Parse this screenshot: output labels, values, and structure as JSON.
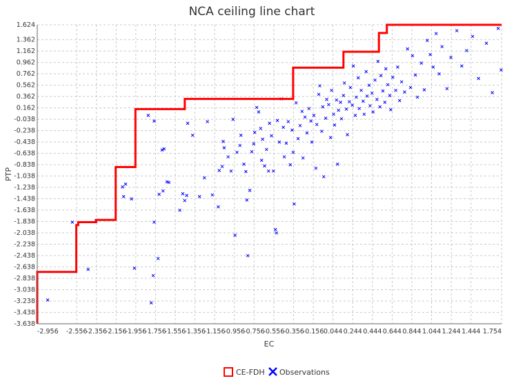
{
  "chart_data": {
    "type": "scatter",
    "title": "NCA ceiling line chart",
    "xlabel": "EC",
    "ylabel": "PTP",
    "xlim": [
      -2.956,
      1.754
    ],
    "ylim": [
      -3.638,
      1.624
    ],
    "x_ticks": [
      "-2.956",
      "-2.556",
      "-2.356",
      "-2.156",
      "-1.956",
      "-1.756",
      "-1.556",
      "-1.356",
      "-1.156",
      "-0.956",
      "-0.756",
      "-0.556",
      "-0.356",
      "-0.156",
      "0.044",
      "0.244",
      "0.444",
      "0.644",
      "0.844",
      "1.044",
      "1.244",
      "1.444",
      "1.754"
    ],
    "y_ticks": [
      "1.624",
      "1.362",
      "1.162",
      "0.962",
      "0.762",
      "0.562",
      "0.362",
      "0.162",
      "-0.038",
      "-0.238",
      "-0.438",
      "-0.638",
      "-0.838",
      "-1.038",
      "-1.238",
      "-1.438",
      "-1.638",
      "-1.838",
      "-2.038",
      "-2.238",
      "-2.438",
      "-2.638",
      "-2.838",
      "-3.038",
      "-3.238",
      "-3.438",
      "-3.638"
    ],
    "grid": true,
    "legend_position": "bottom",
    "colors": {
      "ceiling": "#ff0000",
      "observations": "#0000ff",
      "grid": "#c8c8c8"
    },
    "series": [
      {
        "name": "CE-FDH",
        "type": "step-line",
        "points": [
          [
            -2.956,
            -3.638
          ],
          [
            -2.956,
            -2.726
          ],
          [
            -2.56,
            -2.726
          ],
          [
            -2.56,
            -1.9
          ],
          [
            -2.54,
            -1.9
          ],
          [
            -2.54,
            -1.85
          ],
          [
            -2.36,
            -1.85
          ],
          [
            -2.36,
            -1.81
          ],
          [
            -2.16,
            -1.81
          ],
          [
            -2.16,
            -0.88
          ],
          [
            -1.96,
            -0.88
          ],
          [
            -1.96,
            0.14
          ],
          [
            -1.46,
            0.14
          ],
          [
            -1.46,
            0.32
          ],
          [
            -0.36,
            0.32
          ],
          [
            -0.36,
            0.87
          ],
          [
            0.15,
            0.87
          ],
          [
            0.15,
            1.15
          ],
          [
            0.51,
            1.15
          ],
          [
            0.51,
            1.48
          ],
          [
            0.59,
            1.48
          ],
          [
            0.59,
            1.624
          ],
          [
            1.754,
            1.624
          ]
        ]
      },
      {
        "name": "Observations",
        "type": "scatter",
        "points": [
          [
            -2.85,
            -3.22
          ],
          [
            -2.6,
            -1.85
          ],
          [
            -2.36,
            -1.83
          ],
          [
            -2.44,
            -2.68
          ],
          [
            -2.09,
            -1.23
          ],
          [
            -2.06,
            -1.18
          ],
          [
            -2.08,
            -1.4
          ],
          [
            -2.0,
            -1.44
          ],
          [
            -1.97,
            -2.66
          ],
          [
            -1.83,
            0.03
          ],
          [
            -1.77,
            -0.07
          ],
          [
            -1.72,
            -1.36
          ],
          [
            -1.68,
            -1.3
          ],
          [
            -1.64,
            -1.14
          ],
          [
            -1.62,
            -1.15
          ],
          [
            -1.69,
            -0.58
          ],
          [
            -1.67,
            -0.56
          ],
          [
            -1.77,
            -1.85
          ],
          [
            -1.78,
            -2.79
          ],
          [
            -1.8,
            -3.27
          ],
          [
            -1.73,
            -2.49
          ],
          [
            -1.51,
            -1.64
          ],
          [
            -1.48,
            -1.35
          ],
          [
            -1.46,
            -1.47
          ],
          [
            -1.44,
            -1.38
          ],
          [
            -1.43,
            -0.11
          ],
          [
            -1.38,
            -0.32
          ],
          [
            -1.31,
            -1.4
          ],
          [
            -1.26,
            -1.07
          ],
          [
            -1.23,
            -0.08
          ],
          [
            -1.18,
            -1.37
          ],
          [
            -1.12,
            -1.58
          ],
          [
            -1.11,
            -0.94
          ],
          [
            -1.08,
            -0.87
          ],
          [
            -1.07,
            -0.43
          ],
          [
            -1.06,
            -0.54
          ],
          [
            -1.02,
            -0.7
          ],
          [
            -0.99,
            -0.95
          ],
          [
            -0.97,
            -0.04
          ],
          [
            -0.95,
            -2.08
          ],
          [
            -0.93,
            -0.62
          ],
          [
            -0.9,
            -0.5
          ],
          [
            -0.89,
            -0.32
          ],
          [
            -0.86,
            -0.83
          ],
          [
            -0.84,
            -0.96
          ],
          [
            -0.83,
            -1.46
          ],
          [
            -0.82,
            -2.44
          ],
          [
            -0.8,
            -1.29
          ],
          [
            -0.78,
            -0.61
          ],
          [
            -0.76,
            -0.47
          ],
          [
            -0.75,
            -0.27
          ],
          [
            -0.73,
            0.17
          ],
          [
            -0.71,
            0.09
          ],
          [
            -0.69,
            -0.2
          ],
          [
            -0.68,
            -0.76
          ],
          [
            -0.67,
            -0.39
          ],
          [
            -0.65,
            -0.86
          ],
          [
            -0.63,
            -0.57
          ],
          [
            -0.61,
            -0.95
          ],
          [
            -0.6,
            -0.11
          ],
          [
            -0.58,
            -0.33
          ],
          [
            -0.56,
            -0.95
          ],
          [
            -0.54,
            -1.98
          ],
          [
            -0.53,
            -2.04
          ],
          [
            -0.52,
            -0.06
          ],
          [
            -0.5,
            -0.44
          ],
          [
            -0.48,
            0.32
          ],
          [
            -0.46,
            -0.18
          ],
          [
            -0.45,
            -0.7
          ],
          [
            -0.43,
            -0.46
          ],
          [
            -0.41,
            -0.08
          ],
          [
            -0.39,
            -0.84
          ],
          [
            -0.37,
            -0.23
          ],
          [
            -0.36,
            -0.62
          ],
          [
            -0.35,
            -1.53
          ],
          [
            -0.33,
            0.25
          ],
          [
            -0.31,
            -0.38
          ],
          [
            -0.29,
            -0.15
          ],
          [
            -0.27,
            0.1
          ],
          [
            -0.26,
            -0.72
          ],
          [
            -0.24,
            0.0
          ],
          [
            -0.22,
            -0.28
          ],
          [
            -0.2,
            0.15
          ],
          [
            -0.18,
            -0.07
          ],
          [
            -0.17,
            -0.44
          ],
          [
            -0.15,
            0.03
          ],
          [
            -0.13,
            -0.9
          ],
          [
            -0.12,
            -0.13
          ],
          [
            -0.1,
            0.4
          ],
          [
            -0.09,
            0.55
          ],
          [
            -0.07,
            -0.25
          ],
          [
            -0.06,
            0.18
          ],
          [
            -0.05,
            -1.05
          ],
          [
            -0.03,
            -0.02
          ],
          [
            -0.02,
            0.31
          ],
          [
            0.0,
            0.22
          ],
          [
            0.02,
            -0.36
          ],
          [
            0.03,
            0.47
          ],
          [
            0.05,
            0.05
          ],
          [
            0.06,
            -0.14
          ],
          [
            0.08,
            0.3
          ],
          [
            0.09,
            -0.83
          ],
          [
            0.1,
            0.12
          ],
          [
            0.12,
            0.26
          ],
          [
            0.13,
            -0.03
          ],
          [
            0.15,
            0.38
          ],
          [
            0.16,
            0.6
          ],
          [
            0.18,
            0.14
          ],
          [
            0.19,
            -0.31
          ],
          [
            0.21,
            0.27
          ],
          [
            0.22,
            0.52
          ],
          [
            0.24,
            0.21
          ],
          [
            0.25,
            0.9
          ],
          [
            0.27,
            0.03
          ],
          [
            0.28,
            0.35
          ],
          [
            0.3,
            0.69
          ],
          [
            0.31,
            0.15
          ],
          [
            0.33,
            0.47
          ],
          [
            0.35,
            0.28
          ],
          [
            0.36,
            0.05
          ],
          [
            0.38,
            0.8
          ],
          [
            0.39,
            0.37
          ],
          [
            0.41,
            0.56
          ],
          [
            0.42,
            0.2
          ],
          [
            0.44,
            0.42
          ],
          [
            0.45,
            0.09
          ],
          [
            0.47,
            0.65
          ],
          [
            0.49,
            0.31
          ],
          [
            0.5,
            0.98
          ],
          [
            0.52,
            0.18
          ],
          [
            0.53,
            0.73
          ],
          [
            0.55,
            0.46
          ],
          [
            0.57,
            0.26
          ],
          [
            0.58,
            0.85
          ],
          [
            0.6,
            0.57
          ],
          [
            0.62,
            0.38
          ],
          [
            0.63,
            0.13
          ],
          [
            0.65,
            0.7
          ],
          [
            0.68,
            0.47
          ],
          [
            0.7,
            0.88
          ],
          [
            0.72,
            0.29
          ],
          [
            0.74,
            0.62
          ],
          [
            0.77,
            0.44
          ],
          [
            0.8,
            1.2
          ],
          [
            0.83,
            0.52
          ],
          [
            0.85,
            1.08
          ],
          [
            0.88,
            0.74
          ],
          [
            0.9,
            0.35
          ],
          [
            0.94,
            0.95
          ],
          [
            0.97,
            0.48
          ],
          [
            1.0,
            1.35
          ],
          [
            1.03,
            1.1
          ],
          [
            1.06,
            0.88
          ],
          [
            1.09,
            1.47
          ],
          [
            1.12,
            0.76
          ],
          [
            1.15,
            1.24
          ],
          [
            1.2,
            0.5
          ],
          [
            1.24,
            1.05
          ],
          [
            1.3,
            1.52
          ],
          [
            1.35,
            0.9
          ],
          [
            1.4,
            1.17
          ],
          [
            1.46,
            1.42
          ],
          [
            1.52,
            0.68
          ],
          [
            1.6,
            1.3
          ],
          [
            1.66,
            0.43
          ],
          [
            1.72,
            1.56
          ],
          [
            1.75,
            0.83
          ]
        ]
      }
    ]
  }
}
